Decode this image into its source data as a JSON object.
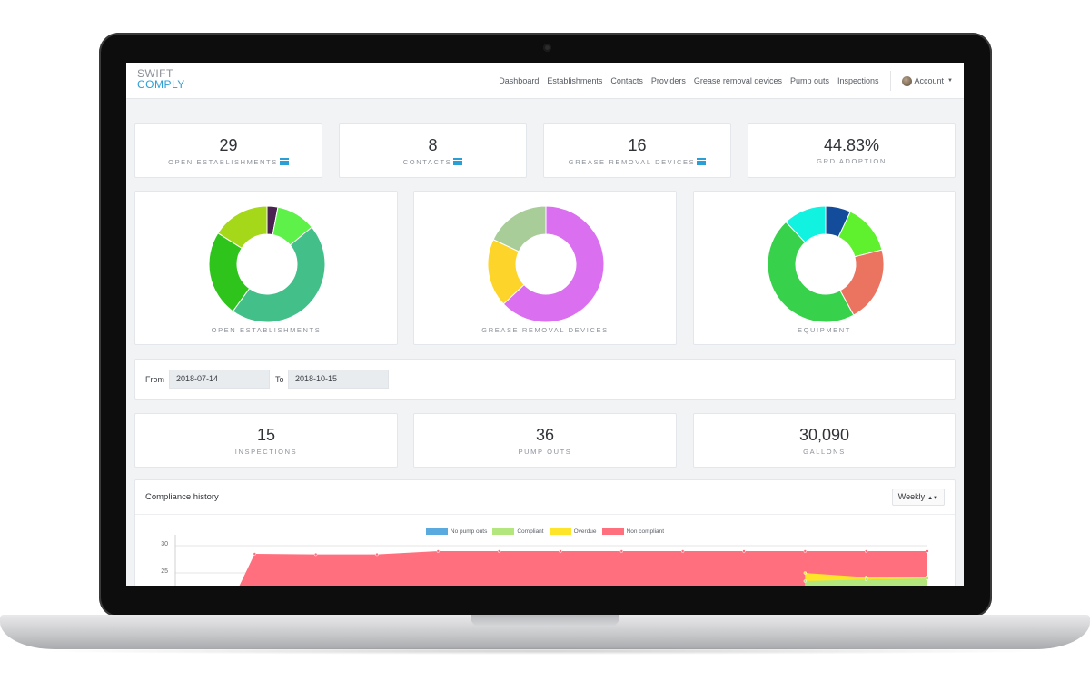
{
  "app": {
    "logo_line1": "SWIFT",
    "logo_line2": "COMPLY",
    "brand_color": "#2a9fd6"
  },
  "nav": {
    "items": [
      "Dashboard",
      "Establishments",
      "Contacts",
      "Providers",
      "Grease removal devices",
      "Pump outs",
      "Inspections"
    ],
    "account_label": "Account"
  },
  "summary": [
    {
      "value": "29",
      "label": "OPEN ESTABLISHMENTS",
      "icon": "menu-icon"
    },
    {
      "value": "8",
      "label": "CONTACTS",
      "icon": "menu-icon"
    },
    {
      "value": "16",
      "label": "GREASE REMOVAL DEVICES",
      "icon": "menu-icon"
    },
    {
      "value": "44.83%",
      "label": "GRD ADOPTION"
    }
  ],
  "donuts": [
    {
      "label": "OPEN ESTABLISHMENTS",
      "segments": [
        {
          "value": 3,
          "color": "#4a2150"
        },
        {
          "value": 11,
          "color": "#5ef14a"
        },
        {
          "value": 46,
          "color": "#43c08a"
        },
        {
          "value": 24,
          "color": "#2ec41c"
        },
        {
          "value": 16,
          "color": "#a6d81a"
        }
      ]
    },
    {
      "label": "GREASE REMOVAL DEVICES",
      "segments": [
        {
          "value": 63,
          "color": "#da6ff0"
        },
        {
          "value": 19,
          "color": "#fdd52a"
        },
        {
          "value": 18,
          "color": "#a8cd98"
        }
      ]
    },
    {
      "label": "EQUIPMENT",
      "segments": [
        {
          "value": 7,
          "color": "#124c9a"
        },
        {
          "value": 14,
          "color": "#5ff02e"
        },
        {
          "value": 21,
          "color": "#ea7460"
        },
        {
          "value": 46,
          "color": "#38d14c"
        },
        {
          "value": 12,
          "color": "#12f2e0"
        }
      ]
    }
  ],
  "filter": {
    "from_label": "From",
    "from_value": "2018-07-14",
    "to_label": "To",
    "to_value": "2018-10-15"
  },
  "period_stats": [
    {
      "value": "15",
      "label": "INSPECTIONS"
    },
    {
      "value": "36",
      "label": "PUMP OUTS"
    },
    {
      "value": "30,090",
      "label": "GALLONS"
    }
  ],
  "history": {
    "title": "Compliance history",
    "period_select": "Weekly",
    "legend": [
      {
        "name": "No pump outs",
        "color": "#5aa9df"
      },
      {
        "name": "Compliant",
        "color": "#b3e67d"
      },
      {
        "name": "Overdue",
        "color": "#ffe52a"
      },
      {
        "name": "Non compliant",
        "color": "#ff6f7d"
      }
    ],
    "y_ticks": [
      "30",
      "25"
    ]
  },
  "chart_data": {
    "type": "area",
    "title": "Compliance history",
    "xlabel": "",
    "ylabel": "",
    "ylim_visible": [
      20,
      30
    ],
    "series": [
      {
        "name": "Non compliant",
        "values": [
          5,
          28.5,
          28.4,
          28.4,
          29,
          29,
          29,
          29,
          29,
          29,
          29,
          29,
          29
        ]
      },
      {
        "name": "Overdue",
        "values": [
          null,
          null,
          null,
          null,
          null,
          null,
          null,
          null,
          null,
          null,
          25,
          24.2,
          24.2
        ]
      },
      {
        "name": "Compliant",
        "values": [
          null,
          null,
          null,
          null,
          null,
          null,
          null,
          null,
          null,
          null,
          23.5,
          23.8,
          24
        ]
      }
    ],
    "grid": true,
    "legend_position": "top"
  }
}
